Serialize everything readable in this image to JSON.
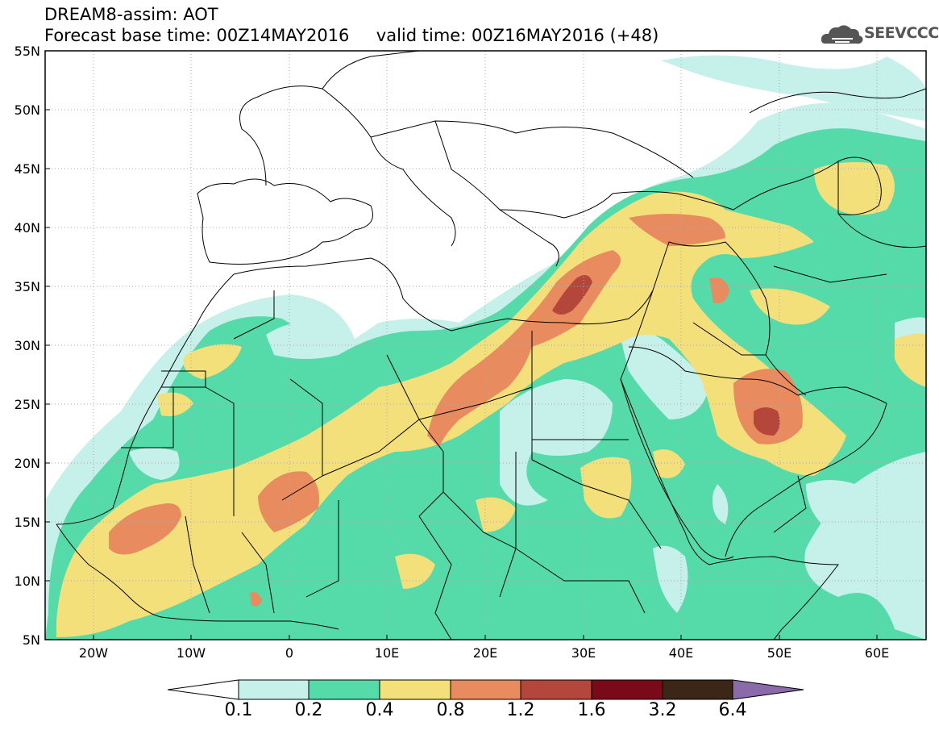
{
  "header": {
    "title": "DREAM8-assim: AOT",
    "subtitle": "Forecast base time: 00Z14MAY2016     valid time: 00Z16MAY2016 (+48)",
    "logo_text": "SEEVCCC"
  },
  "axes": {
    "lat_labels": [
      "55N",
      "50N",
      "45N",
      "40N",
      "35N",
      "30N",
      "25N",
      "20N",
      "15N",
      "10N",
      "5N"
    ],
    "lon_labels": [
      "20W",
      "10W",
      "0",
      "10E",
      "20E",
      "30E",
      "40E",
      "50E",
      "60E"
    ]
  },
  "colorbar": {
    "labels": [
      "0.1",
      "0.2",
      "0.4",
      "0.8",
      "1.2",
      "1.6",
      "3.2",
      "6.4"
    ],
    "colors": [
      "#c6f0ea",
      "#55dba9",
      "#f4e07a",
      "#e88b5e",
      "#b4463c",
      "#7a0a1a",
      "#3b2618",
      "#8a6aa8"
    ]
  },
  "map_layers": [
    {
      "name": "aot-0.1-0.2",
      "color": "#c6f0ea"
    },
    {
      "name": "aot-0.2-0.4",
      "color": "#55dba9"
    },
    {
      "name": "aot-0.4-0.8",
      "color": "#f4e07a"
    },
    {
      "name": "aot-0.8-1.2",
      "color": "#e88b5e"
    },
    {
      "name": "aot-1.2-1.6",
      "color": "#b4463c"
    }
  ]
}
